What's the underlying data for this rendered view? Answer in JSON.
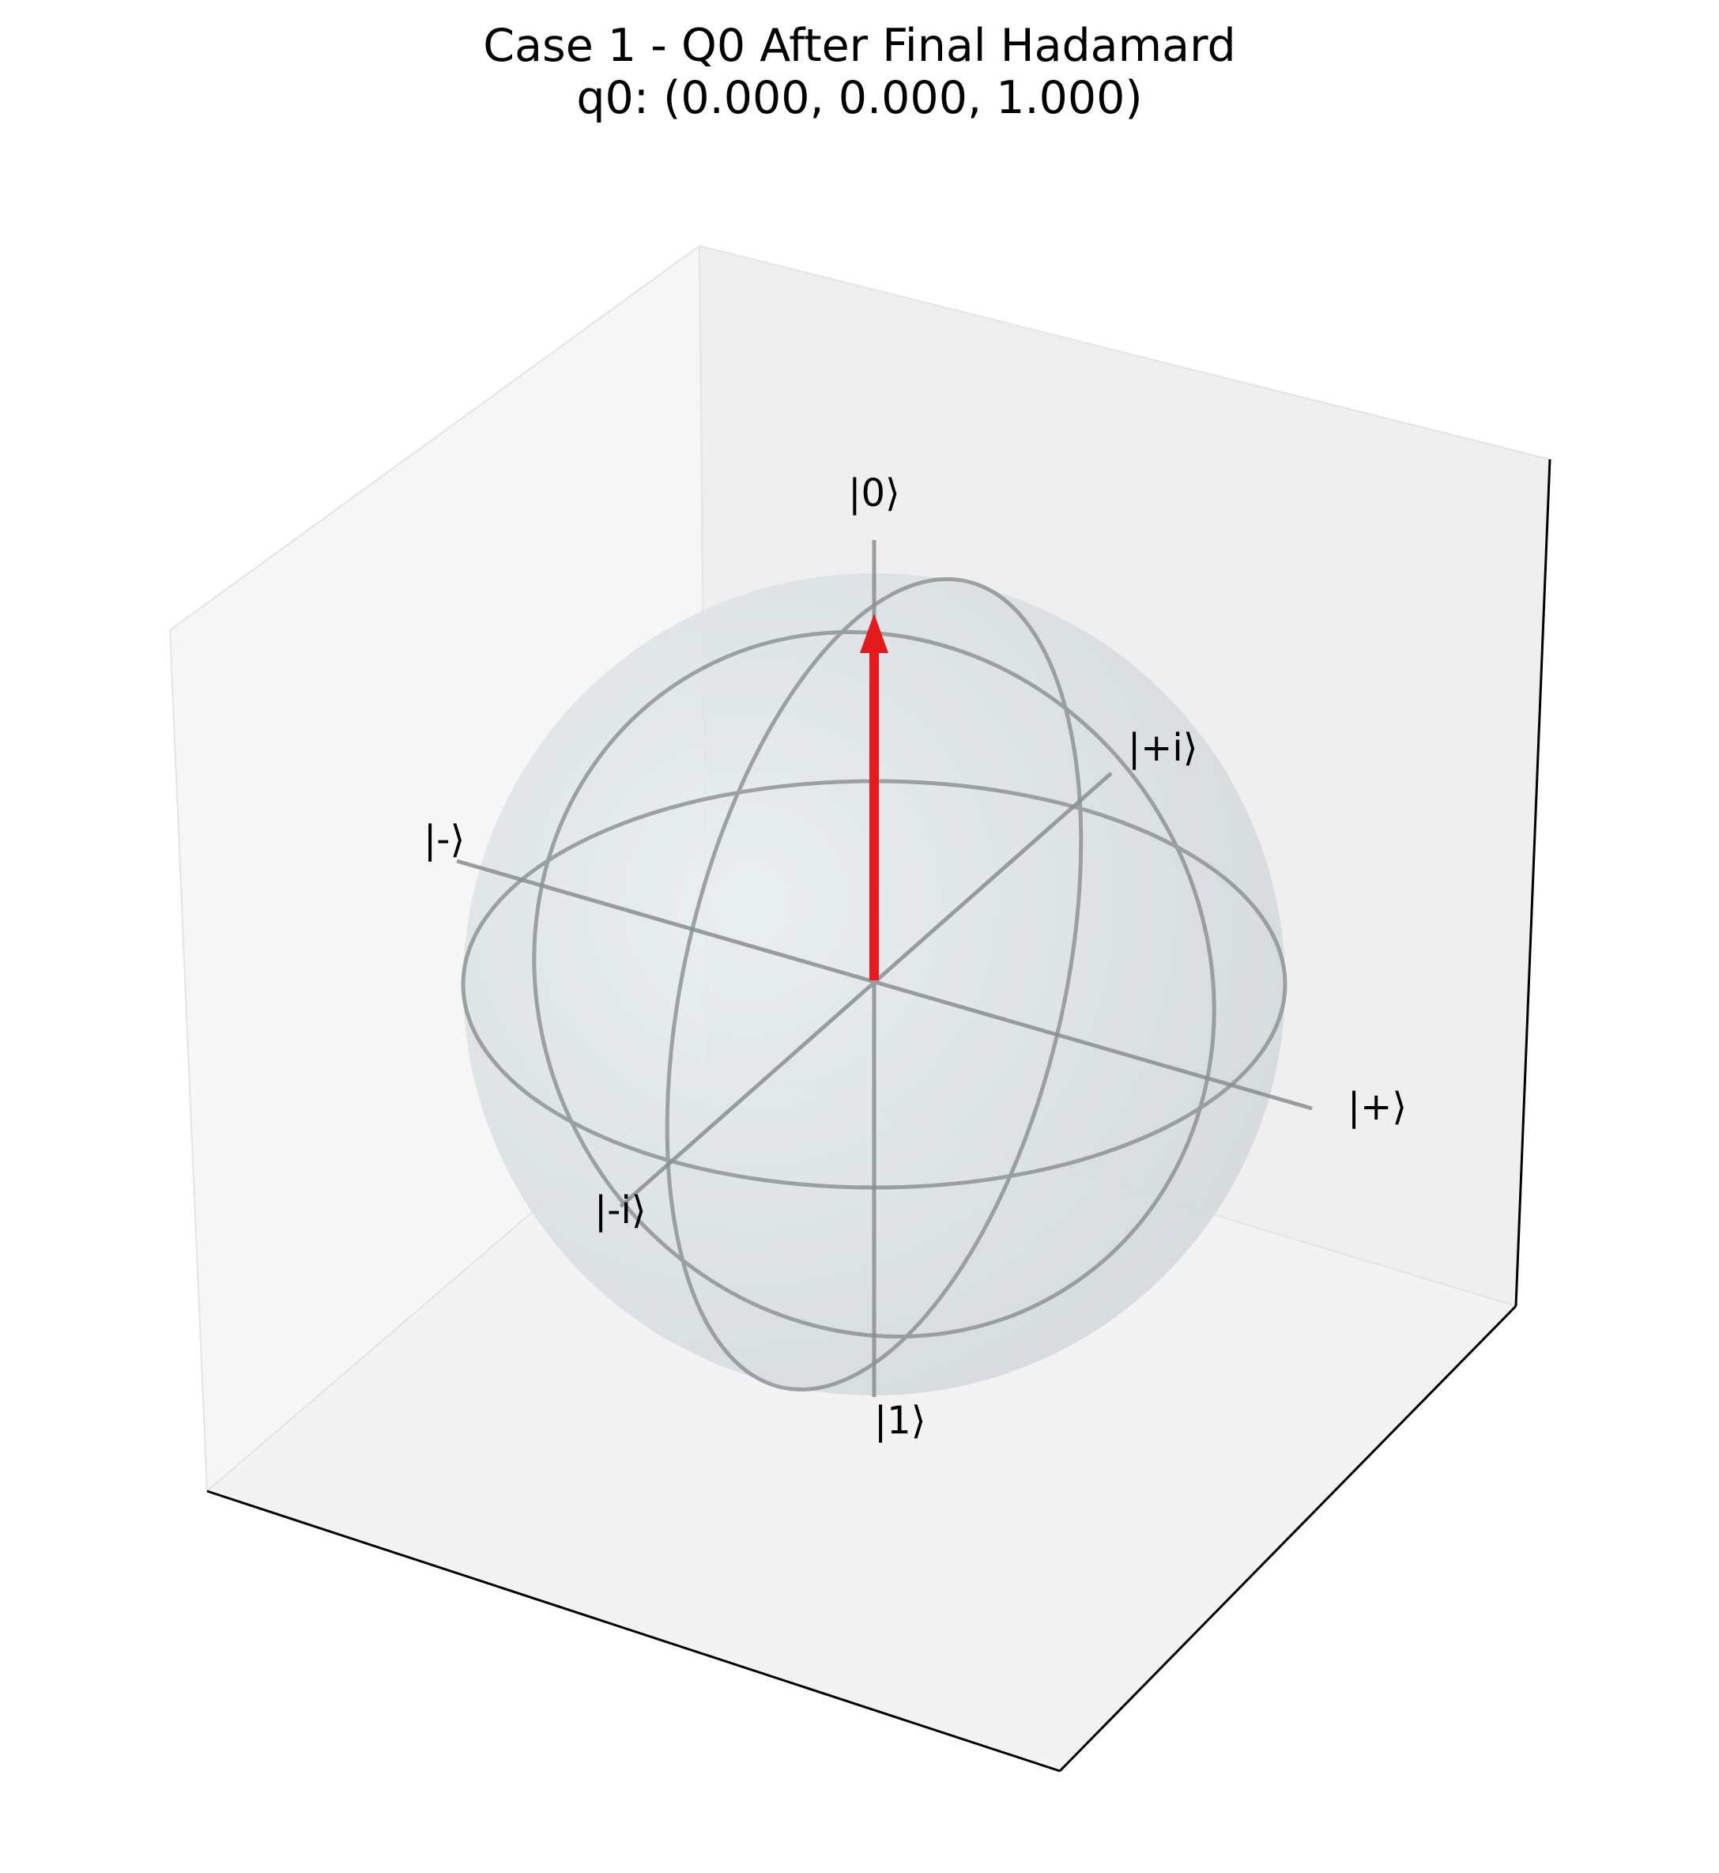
{
  "title": "Case 1 - Q0 After Final Hadamard",
  "subtitle": "q0: (0.000, 0.000, 1.000)",
  "bloch": {
    "qubit": "q0",
    "vector": [
      0.0,
      0.0,
      1.0
    ],
    "vector_color": "#e41a1c",
    "axis_color": "#7f7f7f",
    "sphere_color": "#dbe3e8",
    "labels": {
      "z_plus": "|0⟩",
      "z_minus": "|1⟩",
      "x_plus": "|+⟩",
      "x_minus": "|-⟩",
      "y_plus": "|+i⟩",
      "y_minus": "|-i⟩"
    }
  }
}
